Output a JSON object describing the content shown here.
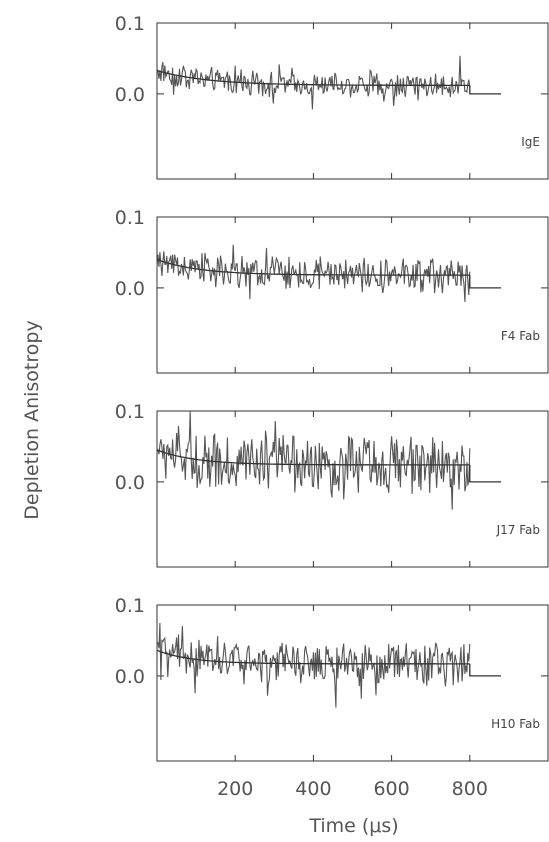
{
  "chart_data": [
    {
      "type": "line",
      "label": "IgE",
      "xlim": [
        0,
        1000
      ],
      "ylim": [
        -0.12,
        0.1
      ],
      "yticks": [
        "0.1",
        "0.0"
      ],
      "data_end_us": 800,
      "fit": {
        "start": 0.033,
        "plateau": 0.012,
        "tau_us": 130
      },
      "noise_amplitude": 0.014,
      "color": "#555555"
    },
    {
      "type": "line",
      "label": "F4 Fab",
      "xlim": [
        0,
        1000
      ],
      "ylim": [
        -0.12,
        0.1
      ],
      "yticks": [
        "0.1",
        "0.0"
      ],
      "data_end_us": 800,
      "fit": {
        "start": 0.04,
        "plateau": 0.018,
        "tau_us": 110
      },
      "noise_amplitude": 0.02,
      "color": "#555555"
    },
    {
      "type": "line",
      "label": "J17 Fab",
      "xlim": [
        0,
        1000
      ],
      "ylim": [
        -0.12,
        0.1
      ],
      "yticks": [
        "0.1",
        "0.0"
      ],
      "data_end_us": 800,
      "fit": {
        "start": 0.045,
        "plateau": 0.024,
        "tau_us": 100
      },
      "noise_amplitude": 0.033,
      "color": "#555555"
    },
    {
      "type": "line",
      "label": "H10 Fab",
      "xlim": [
        0,
        1000
      ],
      "ylim": [
        -0.12,
        0.1
      ],
      "yticks": [
        "0.1",
        "0.0"
      ],
      "data_end_us": 800,
      "fit": {
        "start": 0.036,
        "plateau": 0.017,
        "tau_us": 90
      },
      "noise_amplitude": 0.024,
      "color": "#555555"
    }
  ],
  "xaxis": {
    "label": "Time (μs)",
    "ticks": [
      200,
      400,
      600,
      800
    ],
    "tick_labels": [
      "200",
      "400",
      "600",
      "800"
    ]
  },
  "yaxis": {
    "label": "Depletion Anisotropy"
  }
}
